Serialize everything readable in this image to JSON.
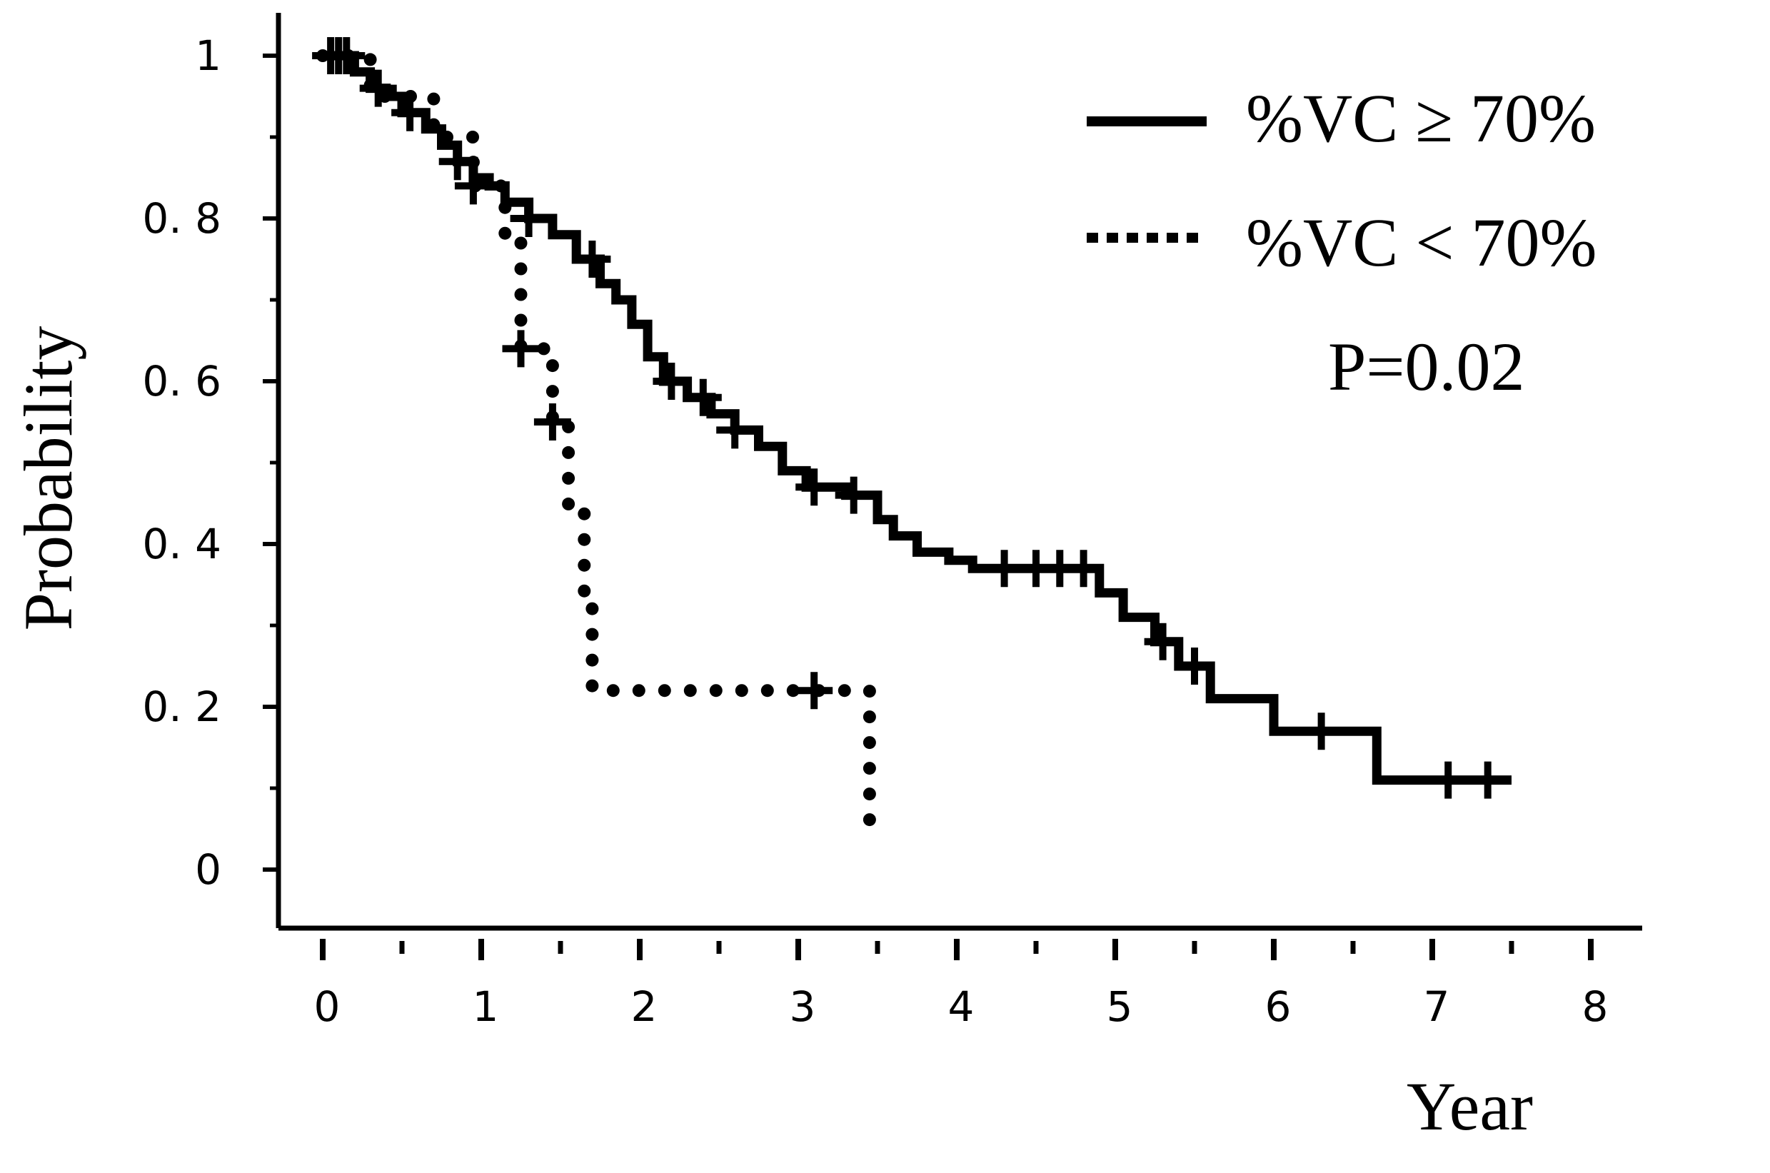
{
  "chart_data": {
    "type": "line",
    "subtype": "kaplan-meier",
    "xlabel": "Year",
    "ylabel": "Probability",
    "xlim": [
      0,
      8
    ],
    "ylim": [
      0,
      1
    ],
    "x_ticks": [
      "0",
      "1",
      "2",
      "3",
      "4",
      "5",
      "6",
      "7",
      "8"
    ],
    "y_ticks": [
      "0",
      "0. 2",
      "0. 6",
      "0. 4",
      "0. 8",
      "1"
    ],
    "y_tick_values": [
      0,
      0.2,
      0.6,
      0.4,
      0.8,
      1
    ],
    "grid": false,
    "legend_position": "top-right",
    "annotation": "P=0.02",
    "series": [
      {
        "name": "%VC ≥ 70%",
        "line_style": "solid",
        "color": "#000000",
        "steps": [
          [
            0,
            1.0
          ],
          [
            0.2,
            0.98
          ],
          [
            0.3,
            0.96
          ],
          [
            0.4,
            0.95
          ],
          [
            0.5,
            0.93
          ],
          [
            0.65,
            0.91
          ],
          [
            0.75,
            0.89
          ],
          [
            0.85,
            0.87
          ],
          [
            0.95,
            0.85
          ],
          [
            1.05,
            0.84
          ],
          [
            1.15,
            0.82
          ],
          [
            1.3,
            0.8
          ],
          [
            1.45,
            0.78
          ],
          [
            1.6,
            0.75
          ],
          [
            1.75,
            0.72
          ],
          [
            1.85,
            0.7
          ],
          [
            1.95,
            0.67
          ],
          [
            2.05,
            0.63
          ],
          [
            2.15,
            0.6
          ],
          [
            2.3,
            0.58
          ],
          [
            2.45,
            0.56
          ],
          [
            2.6,
            0.54
          ],
          [
            2.75,
            0.52
          ],
          [
            2.9,
            0.49
          ],
          [
            3.05,
            0.47
          ],
          [
            3.3,
            0.46
          ],
          [
            3.5,
            0.43
          ],
          [
            3.6,
            0.41
          ],
          [
            3.75,
            0.39
          ],
          [
            3.95,
            0.38
          ],
          [
            4.1,
            0.37
          ],
          [
            4.9,
            0.34
          ],
          [
            5.05,
            0.31
          ],
          [
            5.25,
            0.28
          ],
          [
            5.4,
            0.25
          ],
          [
            5.6,
            0.21
          ],
          [
            6.0,
            0.17
          ],
          [
            6.65,
            0.11
          ],
          [
            7.5,
            0.11
          ]
        ],
        "censor_x": [
          0.05,
          0.1,
          0.15,
          0.35,
          0.55,
          0.85,
          1.3,
          1.7,
          2.2,
          2.4,
          2.6,
          3.1,
          3.35,
          4.3,
          4.5,
          4.65,
          4.8,
          5.3,
          5.5,
          6.3,
          7.1,
          7.35
        ]
      },
      {
        "name": "%VC < 70%",
        "line_style": "dotted",
        "color": "#000000",
        "steps": [
          [
            0,
            1.0
          ],
          [
            0.3,
            0.95
          ],
          [
            0.7,
            0.9
          ],
          [
            0.95,
            0.84
          ],
          [
            1.15,
            0.78
          ],
          [
            1.25,
            0.64
          ],
          [
            1.45,
            0.55
          ],
          [
            1.55,
            0.44
          ],
          [
            1.65,
            0.33
          ],
          [
            1.7,
            0.22
          ],
          [
            3.45,
            0.03
          ]
        ],
        "censor_x": [
          0.95,
          1.25,
          1.45,
          3.1
        ]
      }
    ]
  }
}
